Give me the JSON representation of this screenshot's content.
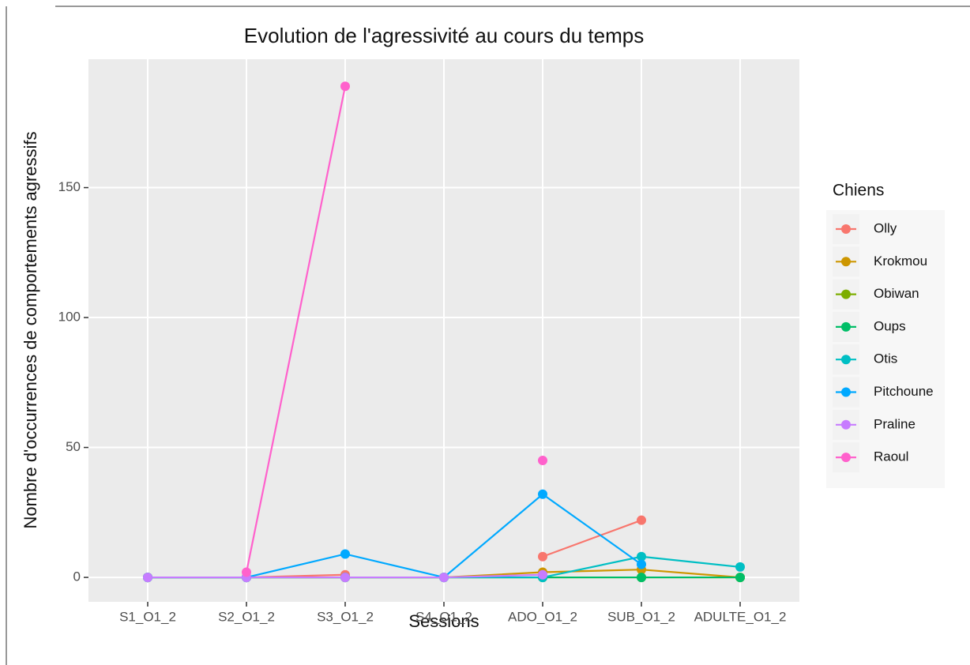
{
  "chart_data": {
    "type": "line",
    "title": "Evolution de l'agressivité au cours du temps",
    "x_label": "Sessions",
    "y_label": "Nombre d'occurrences de comportements agressifs",
    "legend_title": "Chiens",
    "categories": [
      "S1_O1_2",
      "S2_O1_2",
      "S3_O1_2",
      "S4_O1_2",
      "ADO_O1_2",
      "SUB_O1_2",
      "ADULTE_O1_2"
    ],
    "ylim": [
      -9.4,
      199.4
    ],
    "yticks": [
      0,
      50,
      100,
      150
    ],
    "grid": true,
    "legend": "right",
    "series": [
      {
        "name": "Olly",
        "color": "#F8766D",
        "values": [
          0,
          0,
          1,
          null,
          8,
          22,
          null
        ]
      },
      {
        "name": "Krokmou",
        "color": "#CD9600",
        "values": [
          0,
          0,
          0,
          0,
          2,
          3,
          0
        ]
      },
      {
        "name": "Obiwan",
        "color": "#7CAE00",
        "values": [
          0,
          0,
          0,
          0,
          0,
          0,
          0
        ]
      },
      {
        "name": "Oups",
        "color": "#00BE67",
        "values": [
          0,
          0,
          0,
          0,
          0,
          0,
          0
        ]
      },
      {
        "name": "Otis",
        "color": "#00BFC4",
        "values": [
          0,
          0,
          0,
          0,
          0,
          8,
          4
        ]
      },
      {
        "name": "Pitchoune",
        "color": "#00A9FF",
        "values": [
          0,
          0,
          9,
          0,
          32,
          5,
          null
        ]
      },
      {
        "name": "Praline",
        "color": "#C77CFF",
        "values": [
          0,
          0,
          0,
          0,
          1,
          null,
          null
        ]
      },
      {
        "name": "Raoul",
        "color": "#FF61CC",
        "values": [
          null,
          2,
          189,
          null,
          45,
          null,
          null
        ]
      }
    ]
  }
}
